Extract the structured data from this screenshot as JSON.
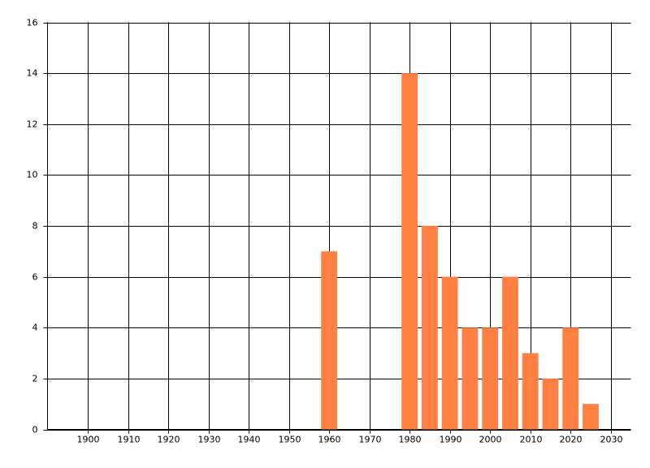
{
  "chart_data": {
    "type": "bar",
    "x": [
      1960,
      1980,
      1985,
      1990,
      1995,
      2000,
      2005,
      2010,
      2015,
      2020,
      2025
    ],
    "values": [
      7,
      14,
      8,
      6,
      4,
      4,
      6,
      3,
      2,
      4,
      1
    ],
    "color": "#ff8040",
    "xlim": [
      1890,
      2035
    ],
    "xticks": [
      1900,
      1910,
      1920,
      1930,
      1940,
      1950,
      1960,
      1970,
      1980,
      1990,
      2000,
      2010,
      2020,
      2030
    ],
    "ylim": [
      0,
      16
    ],
    "yticks": [
      0,
      2,
      4,
      6,
      8,
      10,
      12,
      14,
      16
    ],
    "grid": true
  }
}
